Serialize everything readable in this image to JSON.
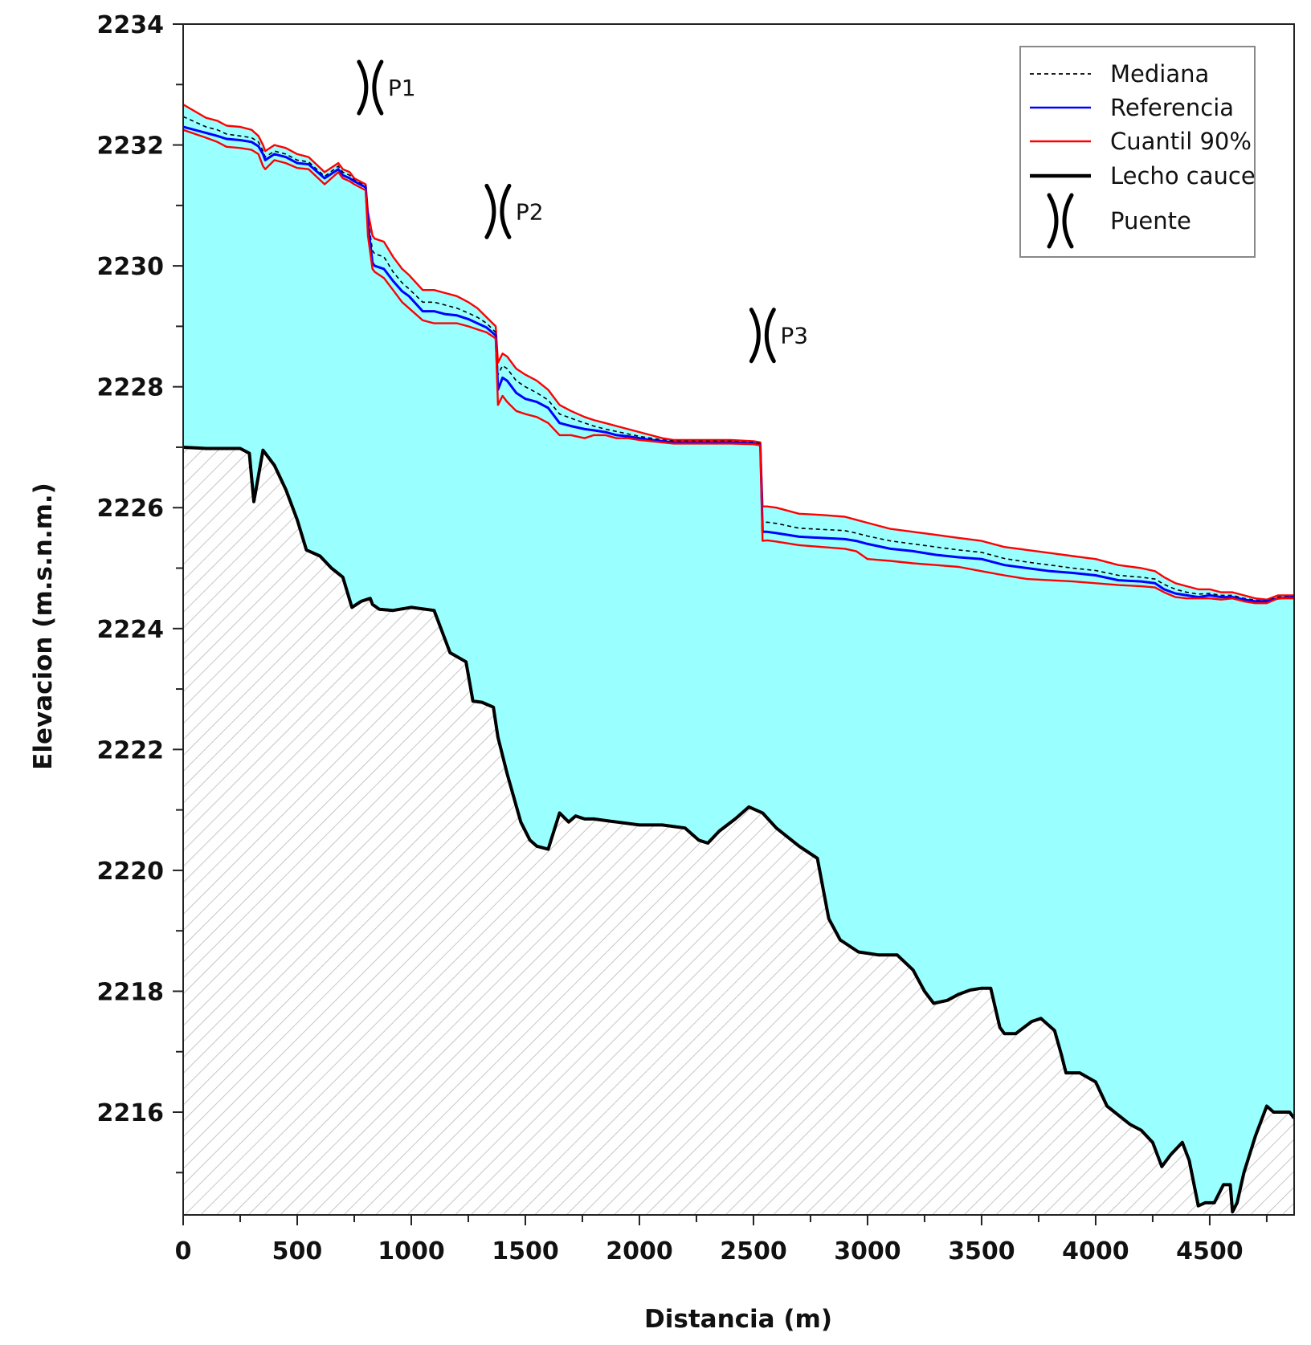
{
  "chart_data": {
    "type": "line",
    "xlabel": "Distancia (m)",
    "ylabel": "Elevacion (m.s.n.m.)",
    "xlim": [
      0,
      4870
    ],
    "ylim": [
      2214.3,
      2234
    ],
    "x_ticks": [
      0,
      500,
      1000,
      1500,
      2000,
      2500,
      3000,
      3500,
      4000,
      4500
    ],
    "x_tick_labels": [
      "0",
      "500",
      "1000",
      "1500",
      "2000",
      "2500",
      "3000",
      "3500",
      "4000",
      "4500"
    ],
    "y_ticks": [
      2216,
      2218,
      2220,
      2222,
      2224,
      2226,
      2228,
      2230,
      2232,
      2234
    ],
    "y_tick_labels": [
      "2216",
      "2218",
      "2220",
      "2222",
      "2224",
      "2226",
      "2228",
      "2230",
      "2232",
      "2234"
    ],
    "legend": {
      "position": "top-right",
      "entries": [
        {
          "label": "Mediana",
          "style": "dashed",
          "color": "#000000"
        },
        {
          "label": "Referencia",
          "style": "solid",
          "color": "#0000ff"
        },
        {
          "label": "Cuantil 90%",
          "style": "solid",
          "color": "#ff0000"
        },
        {
          "label": "Lecho cauce",
          "style": "solid-thick",
          "color": "#000000"
        },
        {
          "label": "Puente",
          "style": "bridge-symbol",
          "color": "#000000"
        }
      ]
    },
    "colors": {
      "water": "#99ffff",
      "bed": "#000000",
      "mediana": "#000000",
      "referencia": "#0000ff",
      "cuantil": "#ff0000",
      "hatch": "#b8b8b8"
    },
    "bridges": [
      {
        "label": "P1",
        "x": 820,
        "y": 2232.95
      },
      {
        "label": "P2",
        "x": 1380,
        "y": 2230.9
      },
      {
        "label": "P3",
        "x": 2540,
        "y": 2228.85
      }
    ],
    "lecho_cauce": {
      "x": [
        0,
        100,
        250,
        290,
        310,
        350,
        400,
        450,
        500,
        540,
        600,
        650,
        700,
        740,
        780,
        820,
        830,
        860,
        920,
        1000,
        1100,
        1170,
        1240,
        1270,
        1310,
        1360,
        1380,
        1420,
        1480,
        1520,
        1550,
        1600,
        1650,
        1690,
        1720,
        1760,
        1800,
        1900,
        2000,
        2100,
        2200,
        2260,
        2300,
        2350,
        2420,
        2480,
        2540,
        2600,
        2700,
        2780,
        2830,
        2880,
        2960,
        3050,
        3130,
        3200,
        3250,
        3290,
        3350,
        3400,
        3450,
        3500,
        3540,
        3580,
        3600,
        3650,
        3720,
        3760,
        3820,
        3850,
        3870,
        3900,
        3930,
        4000,
        4050,
        4100,
        4150,
        4200,
        4250,
        4290,
        4330,
        4380,
        4410,
        4450,
        4480,
        4520,
        4560,
        4590,
        4600,
        4620,
        4650,
        4700,
        4750,
        4780,
        4820,
        4850,
        4870
      ],
      "y": [
        2227.0,
        2226.98,
        2226.98,
        2226.9,
        2226.1,
        2226.95,
        2226.7,
        2226.3,
        2225.8,
        2225.3,
        2225.2,
        2225.0,
        2224.85,
        2224.35,
        2224.45,
        2224.5,
        2224.4,
        2224.32,
        2224.3,
        2224.35,
        2224.3,
        2223.6,
        2223.45,
        2222.8,
        2222.78,
        2222.7,
        2222.2,
        2221.6,
        2220.8,
        2220.5,
        2220.4,
        2220.35,
        2220.95,
        2220.8,
        2220.9,
        2220.85,
        2220.85,
        2220.8,
        2220.75,
        2220.75,
        2220.7,
        2220.5,
        2220.45,
        2220.65,
        2220.85,
        2221.05,
        2220.95,
        2220.7,
        2220.4,
        2220.2,
        2219.2,
        2218.85,
        2218.65,
        2218.6,
        2218.6,
        2218.35,
        2218.0,
        2217.8,
        2217.85,
        2217.95,
        2218.02,
        2218.05,
        2218.05,
        2217.4,
        2217.3,
        2217.3,
        2217.5,
        2217.55,
        2217.35,
        2216.95,
        2216.65,
        2216.65,
        2216.65,
        2216.5,
        2216.1,
        2215.95,
        2215.8,
        2215.7,
        2215.5,
        2215.1,
        2215.3,
        2215.5,
        2215.2,
        2214.45,
        2214.5,
        2214.5,
        2214.8,
        2214.8,
        2214.35,
        2214.5,
        2215.0,
        2215.6,
        2216.1,
        2216.0,
        2216.0,
        2216.0,
        2215.9
      ]
    },
    "series": [
      {
        "name": "Cuantil 90%",
        "x": [
          0,
          100,
          150,
          190,
          250,
          300,
          330,
          350,
          360,
          400,
          450,
          500,
          550,
          620,
          680,
          700,
          730,
          750,
          800,
          810,
          830,
          840,
          880,
          920,
          960,
          990,
          1050,
          1100,
          1150,
          1200,
          1250,
          1290,
          1330,
          1370,
          1380,
          1400,
          1420,
          1460,
          1500,
          1550,
          1600,
          1650,
          1700,
          1760,
          1800,
          1850,
          1900,
          1950,
          2000,
          2050,
          2100,
          2150,
          2200,
          2300,
          2400,
          2500,
          2530,
          2540,
          2560,
          2600,
          2700,
          2800,
          2900,
          2950,
          3000,
          3100,
          3200,
          3300,
          3400,
          3500,
          3600,
          3700,
          3800,
          3900,
          4000,
          4100,
          4200,
          4260,
          4300,
          4350,
          4400,
          4450,
          4500,
          4550,
          4600,
          4650,
          4700,
          4750,
          4800,
          4870
        ],
        "y": [
          2232.67,
          2232.45,
          2232.4,
          2232.32,
          2232.3,
          2232.25,
          2232.15,
          2232.0,
          2231.9,
          2232.0,
          2231.95,
          2231.85,
          2231.8,
          2231.55,
          2231.7,
          2231.6,
          2231.55,
          2231.45,
          2231.35,
          2230.9,
          2230.5,
          2230.45,
          2230.4,
          2230.15,
          2229.95,
          2229.85,
          2229.6,
          2229.6,
          2229.55,
          2229.5,
          2229.4,
          2229.3,
          2229.15,
          2229.0,
          2228.4,
          2228.55,
          2228.5,
          2228.3,
          2228.2,
          2228.1,
          2227.95,
          2227.7,
          2227.6,
          2227.5,
          2227.45,
          2227.4,
          2227.35,
          2227.3,
          2227.25,
          2227.2,
          2227.15,
          2227.12,
          2227.12,
          2227.12,
          2227.12,
          2227.1,
          2227.08,
          2226.02,
          2226.02,
          2226.0,
          2225.9,
          2225.88,
          2225.85,
          2225.8,
          2225.75,
          2225.65,
          2225.6,
          2225.55,
          2225.5,
          2225.45,
          2225.35,
          2225.3,
          2225.25,
          2225.2,
          2225.15,
          2225.05,
          2225.0,
          2224.95,
          2224.85,
          2224.75,
          2224.7,
          2224.65,
          2224.65,
          2224.6,
          2224.6,
          2224.55,
          2224.5,
          2224.48,
          2224.55,
          2224.55
        ]
      },
      {
        "name": "Mediana",
        "x": [
          0,
          100,
          150,
          190,
          250,
          300,
          330,
          350,
          360,
          400,
          450,
          500,
          550,
          620,
          680,
          700,
          730,
          750,
          800,
          810,
          830,
          840,
          880,
          920,
          960,
          990,
          1050,
          1100,
          1150,
          1200,
          1250,
          1290,
          1330,
          1370,
          1380,
          1400,
          1420,
          1460,
          1500,
          1550,
          1600,
          1650,
          1700,
          1760,
          1800,
          1850,
          1900,
          1950,
          2000,
          2050,
          2100,
          2150,
          2200,
          2300,
          2400,
          2500,
          2530,
          2540,
          2560,
          2600,
          2700,
          2800,
          2900,
          2950,
          3000,
          3100,
          3200,
          3300,
          3400,
          3500,
          3600,
          3700,
          3800,
          3900,
          4000,
          4100,
          4200,
          4260,
          4300,
          4350,
          4400,
          4450,
          4500,
          4550,
          4600,
          4650,
          4700,
          4750,
          4800,
          4870
        ],
        "y": [
          2232.47,
          2232.3,
          2232.25,
          2232.18,
          2232.15,
          2232.12,
          2232.05,
          2231.9,
          2231.8,
          2231.9,
          2231.85,
          2231.75,
          2231.72,
          2231.48,
          2231.65,
          2231.55,
          2231.5,
          2231.42,
          2231.32,
          2230.8,
          2230.25,
          2230.2,
          2230.15,
          2229.9,
          2229.72,
          2229.62,
          2229.4,
          2229.4,
          2229.35,
          2229.3,
          2229.22,
          2229.15,
          2229.05,
          2228.9,
          2228.2,
          2228.35,
          2228.3,
          2228.1,
          2228.0,
          2227.9,
          2227.78,
          2227.55,
          2227.48,
          2227.4,
          2227.35,
          2227.3,
          2227.26,
          2227.22,
          2227.18,
          2227.15,
          2227.12,
          2227.1,
          2227.1,
          2227.1,
          2227.1,
          2227.08,
          2227.06,
          2225.75,
          2225.76,
          2225.74,
          2225.66,
          2225.64,
          2225.62,
          2225.58,
          2225.53,
          2225.45,
          2225.4,
          2225.35,
          2225.3,
          2225.26,
          2225.16,
          2225.1,
          2225.05,
          2225.0,
          2224.96,
          2224.88,
          2224.85,
          2224.82,
          2224.73,
          2224.65,
          2224.6,
          2224.57,
          2224.58,
          2224.55,
          2224.55,
          2224.5,
          2224.47,
          2224.46,
          2224.52,
          2224.53
        ]
      },
      {
        "name": "Referencia",
        "x": [
          0,
          100,
          150,
          190,
          250,
          300,
          330,
          350,
          360,
          400,
          450,
          500,
          550,
          620,
          680,
          700,
          730,
          750,
          800,
          810,
          830,
          840,
          880,
          920,
          960,
          990,
          1050,
          1100,
          1150,
          1200,
          1250,
          1290,
          1330,
          1370,
          1380,
          1400,
          1420,
          1460,
          1500,
          1550,
          1600,
          1650,
          1700,
          1760,
          1800,
          1850,
          1900,
          1950,
          2000,
          2050,
          2100,
          2150,
          2200,
          2300,
          2400,
          2500,
          2530,
          2540,
          2560,
          2600,
          2700,
          2800,
          2900,
          2950,
          3000,
          3100,
          3200,
          3300,
          3400,
          3500,
          3600,
          3700,
          3800,
          3900,
          4000,
          4100,
          4200,
          4260,
          4300,
          4350,
          4400,
          4450,
          4500,
          4550,
          4600,
          4650,
          4700,
          4750,
          4800,
          4870
        ],
        "y": [
          2232.3,
          2232.2,
          2232.15,
          2232.1,
          2232.08,
          2232.05,
          2231.98,
          2231.85,
          2231.75,
          2231.85,
          2231.8,
          2231.7,
          2231.68,
          2231.45,
          2231.6,
          2231.5,
          2231.45,
          2231.4,
          2231.3,
          2230.7,
          2230.05,
          2230.0,
          2229.95,
          2229.75,
          2229.58,
          2229.5,
          2229.25,
          2229.25,
          2229.2,
          2229.18,
          2229.12,
          2229.05,
          2228.98,
          2228.85,
          2227.95,
          2228.15,
          2228.1,
          2227.9,
          2227.8,
          2227.75,
          2227.65,
          2227.4,
          2227.35,
          2227.3,
          2227.28,
          2227.25,
          2227.2,
          2227.18,
          2227.15,
          2227.12,
          2227.1,
          2227.08,
          2227.08,
          2227.08,
          2227.08,
          2227.06,
          2227.04,
          2225.6,
          2225.6,
          2225.58,
          2225.52,
          2225.5,
          2225.48,
          2225.45,
          2225.4,
          2225.32,
          2225.28,
          2225.22,
          2225.18,
          2225.15,
          2225.05,
          2225.0,
          2224.95,
          2224.92,
          2224.88,
          2224.8,
          2224.78,
          2224.75,
          2224.65,
          2224.58,
          2224.55,
          2224.52,
          2224.55,
          2224.52,
          2224.52,
          2224.48,
          2224.45,
          2224.45,
          2224.5,
          2224.52
        ]
      },
      {
        "name": "Cuantil 90%",
        "x": [
          0,
          100,
          150,
          190,
          250,
          300,
          330,
          350,
          360,
          400,
          450,
          500,
          550,
          620,
          680,
          700,
          730,
          750,
          800,
          810,
          830,
          840,
          880,
          920,
          960,
          990,
          1050,
          1100,
          1150,
          1200,
          1250,
          1290,
          1330,
          1370,
          1380,
          1400,
          1420,
          1460,
          1500,
          1550,
          1600,
          1650,
          1700,
          1760,
          1800,
          1850,
          1900,
          1950,
          2000,
          2050,
          2100,
          2150,
          2200,
          2300,
          2400,
          2500,
          2530,
          2540,
          2560,
          2600,
          2700,
          2800,
          2900,
          2950,
          3000,
          3100,
          3200,
          3300,
          3400,
          3500,
          3600,
          3700,
          3800,
          3900,
          4000,
          4100,
          4200,
          4260,
          4300,
          4350,
          4400,
          4450,
          4500,
          4550,
          4600,
          4650,
          4700,
          4750,
          4800,
          4870
        ],
        "y": [
          2232.25,
          2232.12,
          2232.05,
          2231.97,
          2231.95,
          2231.92,
          2231.85,
          2231.65,
          2231.6,
          2231.75,
          2231.7,
          2231.62,
          2231.6,
          2231.35,
          2231.55,
          2231.45,
          2231.4,
          2231.35,
          2231.25,
          2230.5,
          2229.95,
          2229.9,
          2229.8,
          2229.6,
          2229.4,
          2229.3,
          2229.1,
          2229.05,
          2229.05,
          2229.05,
          2229.0,
          2228.95,
          2228.9,
          2228.8,
          2227.7,
          2227.85,
          2227.75,
          2227.6,
          2227.55,
          2227.5,
          2227.4,
          2227.2,
          2227.2,
          2227.15,
          2227.2,
          2227.2,
          2227.15,
          2227.15,
          2227.12,
          2227.1,
          2227.08,
          2227.06,
          2227.06,
          2227.06,
          2227.06,
          2227.05,
          2227.03,
          2225.45,
          2225.46,
          2225.44,
          2225.38,
          2225.35,
          2225.32,
          2225.28,
          2225.15,
          2225.12,
          2225.08,
          2225.05,
          2225.02,
          2224.95,
          2224.88,
          2224.82,
          2224.8,
          2224.78,
          2224.75,
          2224.72,
          2224.7,
          2224.68,
          2224.6,
          2224.52,
          2224.5,
          2224.5,
          2224.5,
          2224.48,
          2224.5,
          2224.45,
          2224.42,
          2224.42,
          2224.5,
          2224.5
        ]
      }
    ]
  }
}
